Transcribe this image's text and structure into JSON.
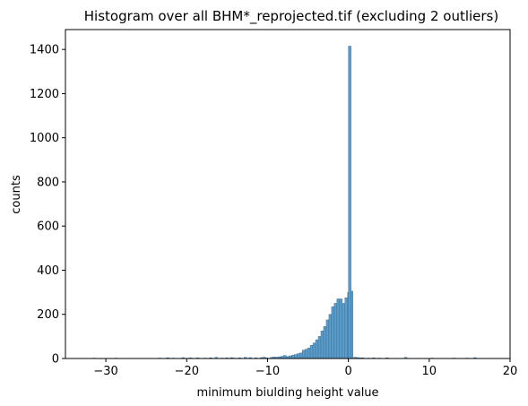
{
  "chart_data": {
    "type": "bar",
    "title": "Histogram over all BHM*_reprojected.tif (excluding 2 outliers)",
    "xlabel": "minimum biulding height value",
    "ylabel": "counts",
    "xlim": [
      -35,
      20
    ],
    "ylim": [
      0,
      1490
    ],
    "xticks": [
      "−30",
      "−20",
      "−10",
      "0",
      "10",
      "20"
    ],
    "xtick_values": [
      -30,
      -20,
      -10,
      0,
      10,
      20
    ],
    "yticks": [
      "0",
      "200",
      "400",
      "600",
      "800",
      "1000",
      "1200",
      "1400"
    ],
    "ytick_values": [
      0,
      200,
      400,
      600,
      800,
      1000,
      1200,
      1400
    ],
    "grid": false,
    "bar_color": "#5b9bc8",
    "edge_color": "#2f6a96",
    "bin_width": 0.33,
    "bins": [
      {
        "x": -31.6,
        "y": 2
      },
      {
        "x": -30.9,
        "y": 1
      },
      {
        "x": -28.9,
        "y": 2
      },
      {
        "x": -23.5,
        "y": 2
      },
      {
        "x": -22.5,
        "y": 3
      },
      {
        "x": -21.8,
        "y": 2
      },
      {
        "x": -20.6,
        "y": 4
      },
      {
        "x": -19.7,
        "y": 3
      },
      {
        "x": -18.8,
        "y": 3
      },
      {
        "x": -17.9,
        "y": 2
      },
      {
        "x": -17.2,
        "y": 3
      },
      {
        "x": -16.5,
        "y": 5
      },
      {
        "x": -15.8,
        "y": 2
      },
      {
        "x": -15.2,
        "y": 3
      },
      {
        "x": -14.6,
        "y": 4
      },
      {
        "x": -14.3,
        "y": 2
      },
      {
        "x": -13.6,
        "y": 3
      },
      {
        "x": -12.9,
        "y": 5
      },
      {
        "x": -12.3,
        "y": 4
      },
      {
        "x": -11.6,
        "y": 3
      },
      {
        "x": -10.9,
        "y": 4
      },
      {
        "x": -10.6,
        "y": 6
      },
      {
        "x": -10.3,
        "y": 3
      },
      {
        "x": -9.67,
        "y": 5
      },
      {
        "x": -9.34,
        "y": 7
      },
      {
        "x": -9.01,
        "y": 6
      },
      {
        "x": -8.68,
        "y": 8
      },
      {
        "x": -8.35,
        "y": 10
      },
      {
        "x": -8.02,
        "y": 14
      },
      {
        "x": -7.69,
        "y": 9
      },
      {
        "x": -7.36,
        "y": 12
      },
      {
        "x": -7.03,
        "y": 15
      },
      {
        "x": -6.7,
        "y": 18
      },
      {
        "x": -6.37,
        "y": 22
      },
      {
        "x": -6.04,
        "y": 25
      },
      {
        "x": -5.71,
        "y": 38
      },
      {
        "x": -5.38,
        "y": 42
      },
      {
        "x": -5.05,
        "y": 48
      },
      {
        "x": -4.72,
        "y": 60
      },
      {
        "x": -4.39,
        "y": 70
      },
      {
        "x": -4.06,
        "y": 85
      },
      {
        "x": -3.73,
        "y": 100
      },
      {
        "x": -3.4,
        "y": 125
      },
      {
        "x": -3.07,
        "y": 145
      },
      {
        "x": -2.74,
        "y": 175
      },
      {
        "x": -2.41,
        "y": 200
      },
      {
        "x": -2.08,
        "y": 235
      },
      {
        "x": -1.75,
        "y": 250
      },
      {
        "x": -1.42,
        "y": 270
      },
      {
        "x": -1.09,
        "y": 270
      },
      {
        "x": -0.76,
        "y": 250
      },
      {
        "x": -0.43,
        "y": 275
      },
      {
        "x": -0.1,
        "y": 300
      },
      {
        "x": 0.23,
        "y": 305
      },
      {
        "x": 0.0,
        "y": 1415
      },
      {
        "x": 0.66,
        "y": 6
      },
      {
        "x": 0.99,
        "y": 4
      },
      {
        "x": 1.32,
        "y": 3
      },
      {
        "x": 1.65,
        "y": 3
      },
      {
        "x": 2.31,
        "y": 2
      },
      {
        "x": 2.97,
        "y": 3
      },
      {
        "x": 3.63,
        "y": 2
      },
      {
        "x": 4.62,
        "y": 3
      },
      {
        "x": 6.93,
        "y": 5
      },
      {
        "x": 10.2,
        "y": 2
      },
      {
        "x": 12.9,
        "y": 2
      },
      {
        "x": 14.5,
        "y": 2
      },
      {
        "x": 15.5,
        "y": 4
      }
    ]
  }
}
